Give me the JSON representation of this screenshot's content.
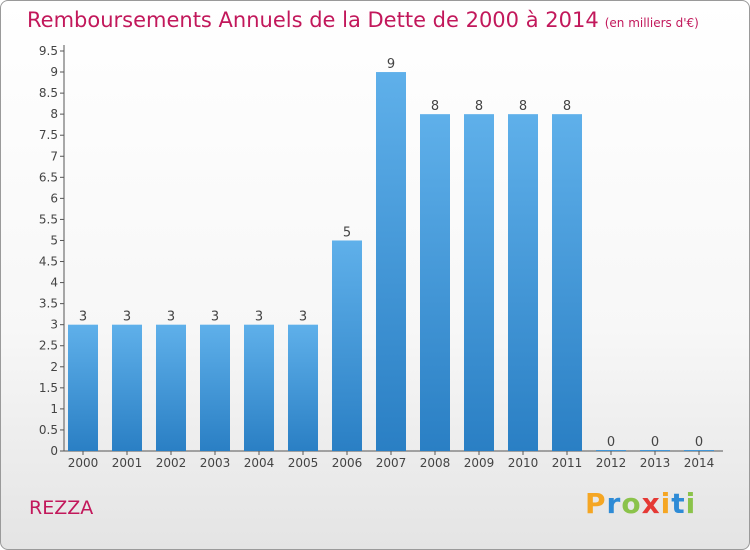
{
  "title": "Remboursements Annuels de la Dette de 2000 à 2014",
  "subtitle": "(en milliers d'€)",
  "footer_label": "REZZA",
  "logo": {
    "letters": [
      "P",
      "r",
      "o",
      "x",
      "i",
      "t",
      "i"
    ],
    "colors": [
      "#f5a623",
      "#2e8bd6",
      "#8bc34a",
      "#e53935",
      "#f5a623",
      "#2e8bd6",
      "#8bc34a"
    ]
  },
  "colors": {
    "bar_top": "#5fb0ea",
    "bar_bottom": "#2a7fc4",
    "title": "#c2185b"
  },
  "chart_data": {
    "type": "bar",
    "categories": [
      "2000",
      "2001",
      "2002",
      "2003",
      "2004",
      "2005",
      "2006",
      "2007",
      "2008",
      "2009",
      "2010",
      "2011",
      "2012",
      "2013",
      "2014"
    ],
    "values": [
      3,
      3,
      3,
      3,
      3,
      3,
      5,
      9,
      8,
      8,
      8,
      8,
      0,
      0,
      0
    ],
    "data_labels": [
      "3",
      "3",
      "3",
      "3",
      "3",
      "3",
      "5",
      "9",
      "8",
      "8",
      "8",
      "8",
      "0",
      "0",
      "0"
    ],
    "y_ticks": [
      0,
      0.5,
      1,
      1.5,
      2,
      2.5,
      3,
      3.5,
      4,
      4.5,
      5,
      5.5,
      6,
      6.5,
      7,
      7.5,
      8,
      8.5,
      9,
      9.5
    ],
    "y_tick_labels": [
      "0",
      "0.5",
      "1",
      "1.5",
      "2",
      "2.5",
      "3",
      "3.5",
      "4",
      "4.5",
      "5",
      "5.5",
      "6",
      "6.5",
      "7",
      "7.5",
      "8",
      "8.5",
      "9",
      "9.5"
    ],
    "ylim": [
      0,
      9.5
    ],
    "title": "Remboursements Annuels de la Dette de 2000 à 2014",
    "xlabel": "",
    "ylabel": "",
    "grid": false,
    "legend": "none"
  }
}
